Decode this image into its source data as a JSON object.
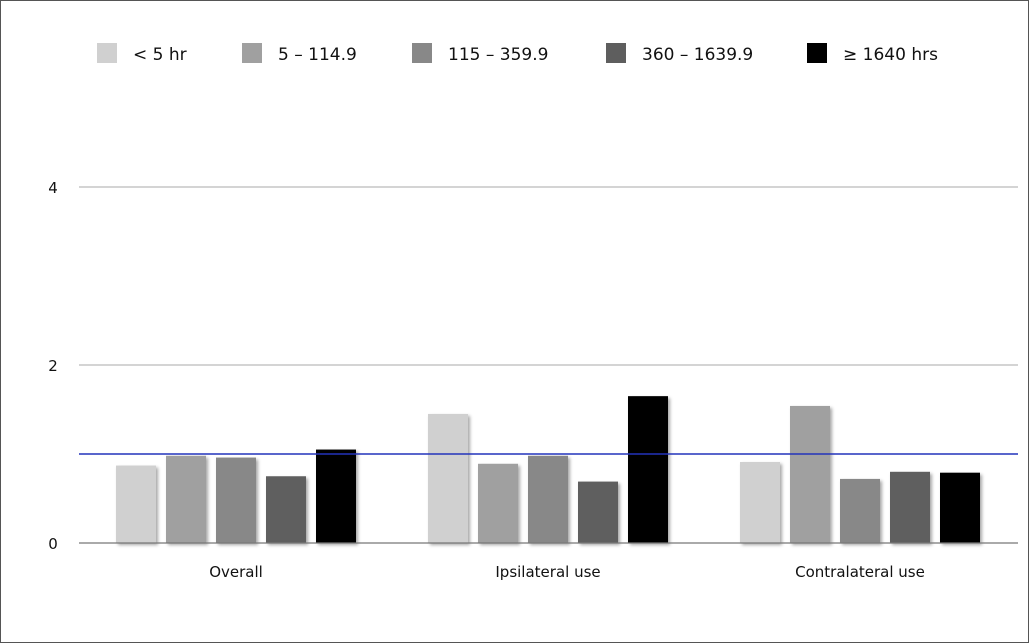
{
  "chart_data": {
    "type": "bar",
    "categories": [
      "Overall",
      "Ipsilateral use",
      "Contralateral use"
    ],
    "series": [
      {
        "name": "< 5 hr",
        "color": "#d0d0d0",
        "values": [
          0.87,
          1.45,
          0.91
        ]
      },
      {
        "name": "5 – 114.9",
        "color": "#a0a0a0",
        "values": [
          0.98,
          0.89,
          1.54
        ]
      },
      {
        "name": "115 – 359.9",
        "color": "#888888",
        "values": [
          0.96,
          0.98,
          0.72
        ]
      },
      {
        "name": "360 – 1639.9",
        "color": "#5e5e5e",
        "values": [
          0.75,
          0.69,
          0.8
        ]
      },
      {
        "name": "≥ 1640 hrs",
        "color": "#000000",
        "values": [
          1.05,
          1.65,
          0.79
        ]
      }
    ],
    "yticks": [
      0,
      2,
      4
    ],
    "ylim": [
      0,
      5
    ],
    "reference_line": {
      "value": 1,
      "color": "#2233bb"
    },
    "grid": true,
    "legend_position": "top",
    "title": "",
    "xlabel": "",
    "ylabel": ""
  }
}
